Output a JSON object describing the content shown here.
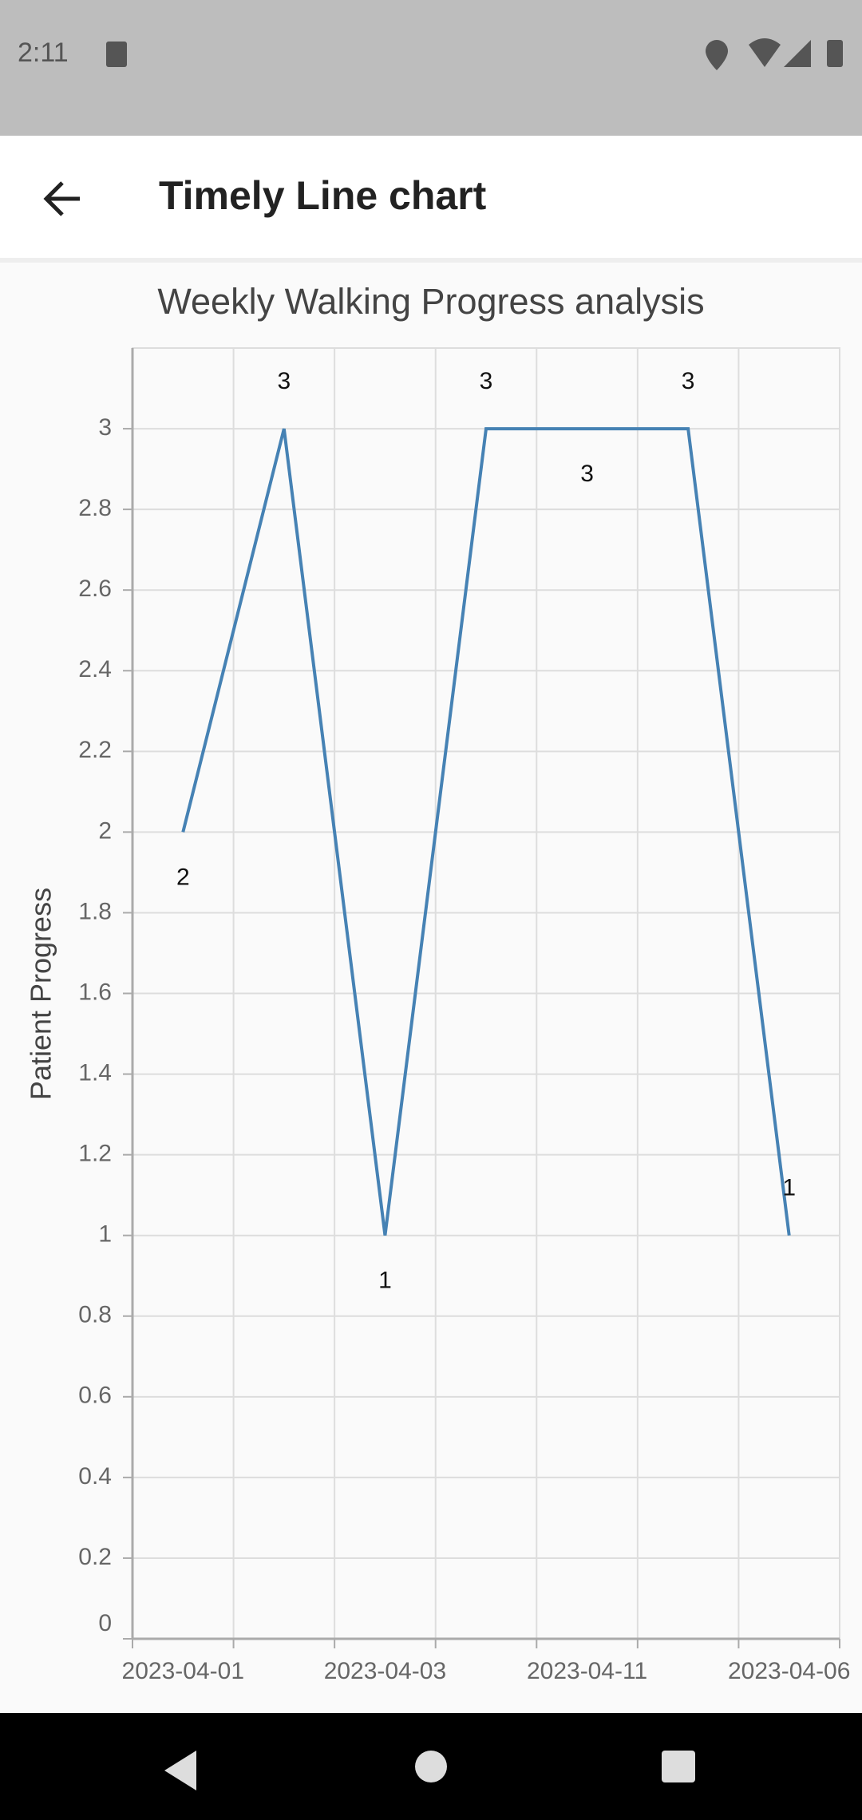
{
  "status_bar": {
    "time": "2:11"
  },
  "app_bar": {
    "title": "Timely Line chart"
  },
  "chart_data": {
    "type": "line",
    "title": "Weekly Walking Progress analysis",
    "y_label": "Patient Progress",
    "categories": [
      "2023-04-01",
      null,
      "2023-04-03",
      null,
      "2023-04-11",
      null,
      "2023-04-06"
    ],
    "series": [
      {
        "name": "Patient Progress",
        "color": "#4682b4",
        "values": [
          2,
          3,
          1,
          3,
          3,
          3,
          1
        ]
      }
    ],
    "ylim": [
      0,
      3.2
    ],
    "yticks": [
      0,
      0.2,
      0.4,
      0.6,
      0.8,
      1,
      1.2,
      1.4,
      1.6,
      1.8,
      2,
      2.2,
      2.4,
      2.6,
      2.8,
      3
    ],
    "grid": true,
    "data_labels": true
  }
}
